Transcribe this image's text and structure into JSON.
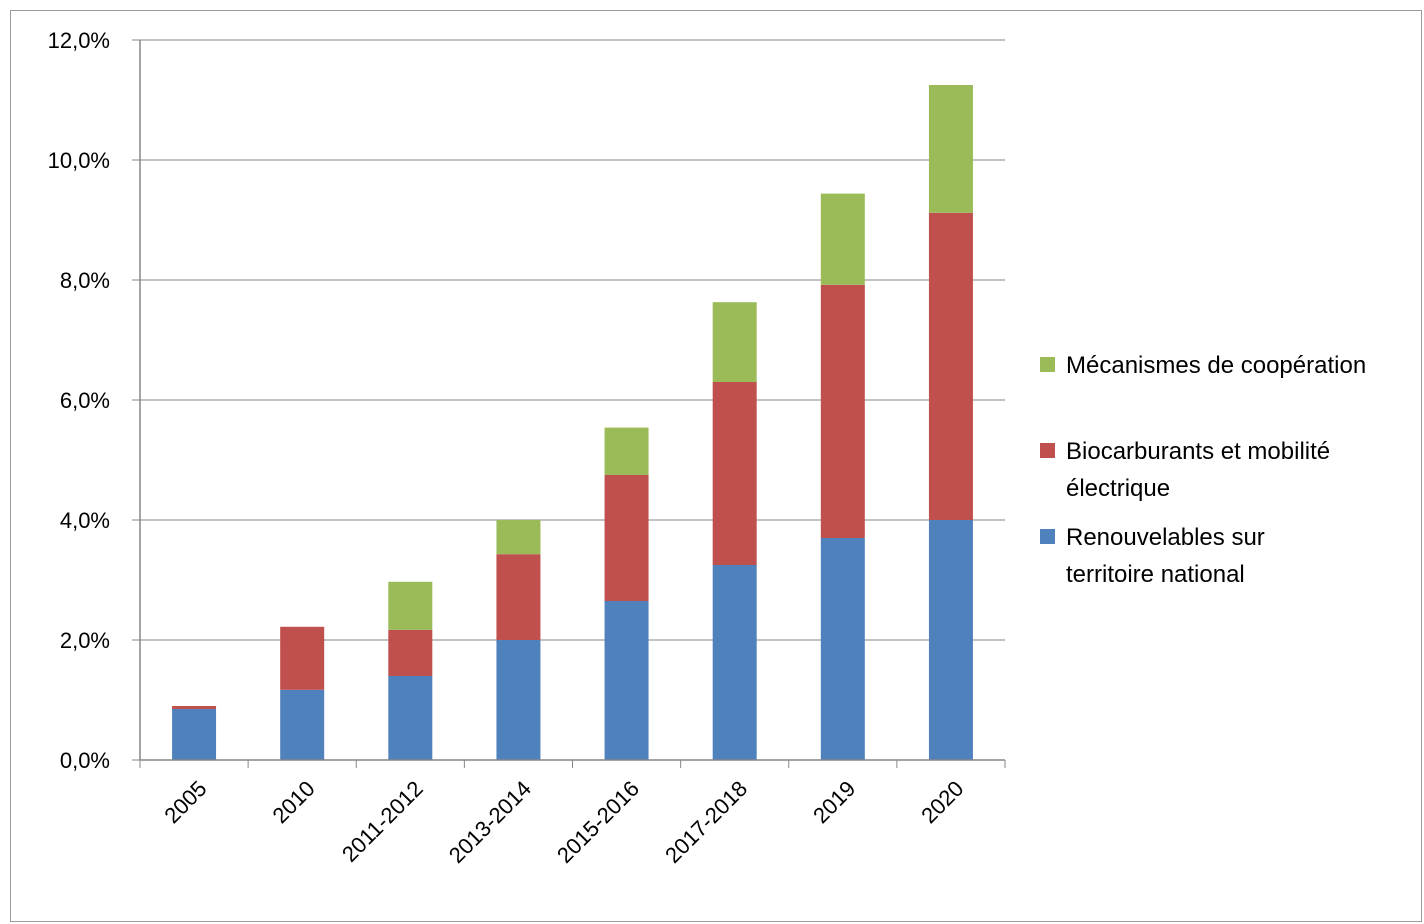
{
  "chart_data": {
    "type": "bar",
    "stacked": true,
    "categories": [
      "2005",
      "2010",
      "2011-2012",
      "2013-2014",
      "2015-2016",
      "2017-2018",
      "2019",
      "2020"
    ],
    "series": [
      {
        "name": "Renouvelables sur territoire national",
        "color": "#4F81BD",
        "values": [
          0.85,
          1.17,
          1.4,
          2.0,
          2.65,
          3.25,
          3.7,
          4.0
        ]
      },
      {
        "name": "Biocarburants et mobilité électrique",
        "color": "#C0504D",
        "values": [
          0.05,
          1.05,
          0.77,
          1.43,
          2.1,
          3.05,
          4.22,
          5.12
        ]
      },
      {
        "name": "Mécanismes de coopération",
        "color": "#9BBB59",
        "values": [
          0.0,
          0.0,
          0.8,
          0.57,
          0.79,
          1.33,
          1.52,
          2.13
        ]
      }
    ],
    "yticks": [
      "0,0%",
      "2,0%",
      "4,0%",
      "6,0%",
      "8,0%",
      "10,0%",
      "12,0%"
    ],
    "ylim": [
      0,
      12
    ],
    "grid": true,
    "legend_position": "right",
    "title": "",
    "xlabel": "",
    "ylabel": ""
  }
}
